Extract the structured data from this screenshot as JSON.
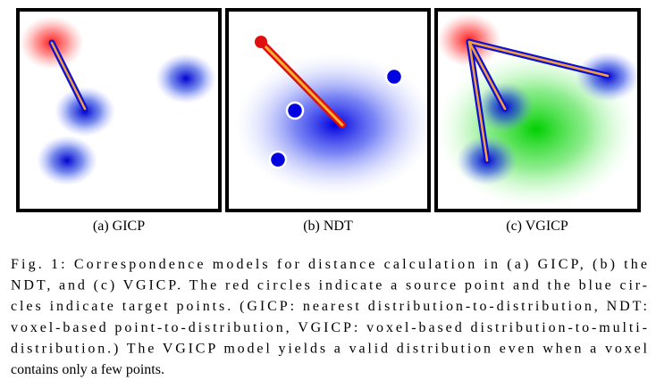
{
  "figure": {
    "panels": [
      {
        "caption": "(a) GICP"
      },
      {
        "caption": "(b) NDT"
      },
      {
        "caption": "(c) VGICP"
      }
    ],
    "caption": {
      "lines": [
        "Fig. 1: Correspondence models for distance calculation in (a) GICP, (b) the",
        "NDT, and (c) VGICP. The red circles indicate a source point and the blue cir-",
        "cles indicate target points. (GICP: nearest distribution-to-distribution, NDT:",
        "voxel-based point-to-distribution, VGICP: voxel-based distribution-to-multi-",
        "distribution.) The VGICP model yields a valid distribution even when a voxel",
        "contains only a few points."
      ]
    }
  }
}
